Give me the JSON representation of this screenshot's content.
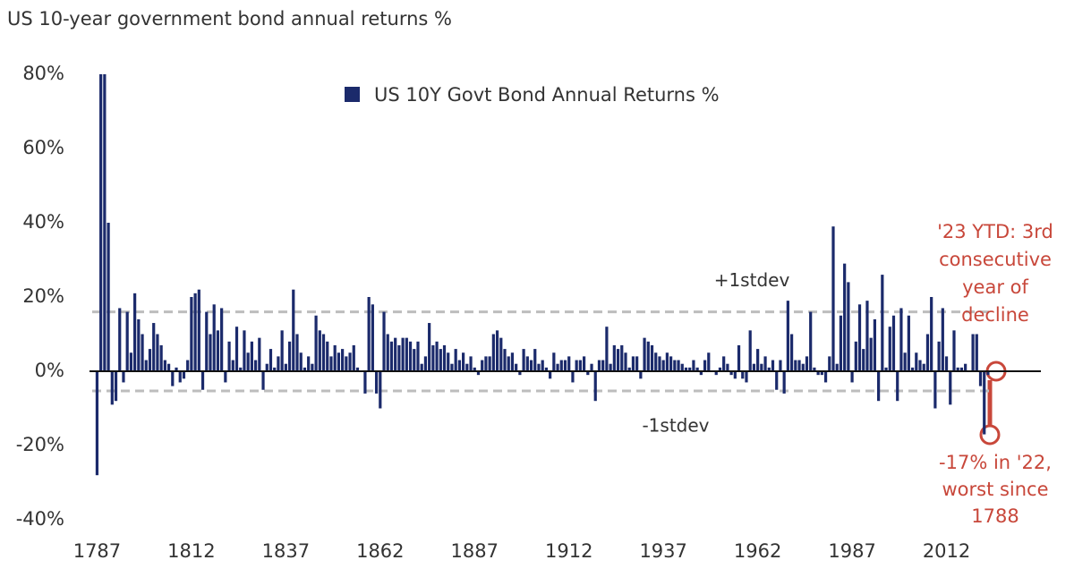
{
  "chart_data": {
    "type": "bar",
    "subtitle": "US 10-year government bond annual returns %",
    "series": [
      {
        "name": "US 10Y Govt Bond Annual Returns %",
        "color": "#1b2a6b",
        "values": [
          -28,
          80,
          80,
          40,
          -9,
          -8,
          17,
          -3,
          16,
          5,
          21,
          14,
          10,
          3,
          6,
          13,
          10,
          7,
          3,
          2,
          -4,
          1,
          -3,
          -2,
          3,
          20,
          21,
          22,
          -5,
          16,
          10,
          18,
          11,
          17,
          -3,
          8,
          3,
          12,
          1,
          11,
          5,
          8,
          3,
          9,
          -5,
          2,
          6,
          1,
          4,
          11,
          2,
          8,
          22,
          10,
          5,
          1,
          4,
          2,
          15,
          11,
          10,
          8,
          4,
          7,
          5,
          6,
          4,
          5,
          7,
          1,
          0,
          -6,
          20,
          18,
          -6,
          -10,
          16,
          10,
          8,
          9,
          7,
          9,
          9,
          8,
          6,
          8,
          2,
          4,
          13,
          7,
          8,
          6,
          7,
          5,
          2,
          6,
          3,
          5,
          2,
          4,
          1,
          -1,
          3,
          4,
          4,
          10,
          11,
          9,
          6,
          4,
          5,
          2,
          -1,
          6,
          4,
          3,
          6,
          2,
          3,
          1,
          -2,
          5,
          2,
          3,
          3,
          4,
          -3,
          3,
          3,
          4,
          -1,
          2,
          -8,
          3,
          3,
          12,
          2,
          7,
          6,
          7,
          5,
          1,
          4,
          4,
          -2,
          9,
          8,
          7,
          5,
          4,
          3,
          5,
          4,
          3,
          3,
          2,
          1,
          1,
          3,
          1,
          -1,
          3,
          5,
          0,
          -1,
          1,
          4,
          2,
          -1,
          -2,
          7,
          -2,
          -3,
          11,
          2,
          6,
          2,
          4,
          1,
          3,
          -5,
          3,
          -6,
          19,
          10,
          3,
          3,
          2,
          4,
          16,
          1,
          -1,
          -1,
          -3,
          4,
          39,
          2,
          15,
          29,
          24,
          -3,
          8,
          18,
          6,
          19,
          9,
          14,
          -8,
          26,
          1,
          12,
          15,
          -8,
          17,
          5,
          15,
          1,
          5,
          3,
          2,
          10,
          20,
          -10,
          8,
          17,
          4,
          -9,
          11,
          1,
          1,
          2,
          0,
          10,
          10,
          -4,
          -17,
          -1
        ]
      }
    ],
    "x": [
      1787,
      1788,
      1789,
      1790,
      1791,
      1792,
      1793,
      1794,
      1795,
      1796,
      1797,
      1798,
      1799,
      1800,
      1801,
      1802,
      1803,
      1804,
      1805,
      1806,
      1807,
      1808,
      1809,
      1810,
      1811,
      1812,
      1813,
      1814,
      1815,
      1816,
      1817,
      1818,
      1819,
      1820,
      1821,
      1822,
      1823,
      1824,
      1825,
      1826,
      1827,
      1828,
      1829,
      1830,
      1831,
      1832,
      1833,
      1834,
      1835,
      1836,
      1837,
      1838,
      1839,
      1840,
      1841,
      1842,
      1843,
      1844,
      1845,
      1846,
      1847,
      1848,
      1849,
      1850,
      1851,
      1852,
      1853,
      1854,
      1855,
      1856,
      1857,
      1858,
      1859,
      1860,
      1861,
      1862,
      1863,
      1864,
      1865,
      1866,
      1867,
      1868,
      1869,
      1870,
      1871,
      1872,
      1873,
      1874,
      1875,
      1876,
      1877,
      1878,
      1879,
      1880,
      1881,
      1882,
      1883,
      1884,
      1885,
      1886,
      1887,
      1888,
      1889,
      1890,
      1891,
      1892,
      1893,
      1894,
      1895,
      1896,
      1897,
      1898,
      1899,
      1900,
      1901,
      1902,
      1903,
      1904,
      1905,
      1906,
      1907,
      1908,
      1909,
      1910,
      1911,
      1912,
      1913,
      1914,
      1915,
      1916,
      1917,
      1918,
      1919,
      1920,
      1921,
      1922,
      1923,
      1924,
      1925,
      1926,
      1927,
      1928,
      1929,
      1930,
      1931,
      1932,
      1933,
      1934,
      1935,
      1936,
      1937,
      1938,
      1939,
      1940,
      1941,
      1942,
      1943,
      1944,
      1945,
      1946,
      1947,
      1948,
      1949,
      1950,
      1951,
      1952,
      1953,
      1954,
      1955,
      1956,
      1957,
      1958,
      1959,
      1960,
      1961,
      1962,
      1963,
      1964,
      1965,
      1966,
      1967,
      1968,
      1969,
      1970,
      1971,
      1972,
      1973,
      1974,
      1975,
      1976,
      1977,
      1978,
      1979,
      1980,
      1981,
      1982,
      1983,
      1984,
      1985,
      1986,
      1987,
      1988,
      1989,
      1990,
      1991,
      1992,
      1993,
      1994,
      1995,
      1996,
      1997,
      1998,
      1999,
      2000,
      2001,
      2002,
      2003,
      2004,
      2005,
      2006,
      2007,
      2008,
      2009,
      2010,
      2011,
      2012,
      2013,
      2014,
      2015,
      2016,
      2017,
      2018,
      2019,
      2020,
      2021,
      2022,
      2023
    ],
    "xlim": [
      1785,
      2037
    ],
    "xticks": [
      1787,
      1812,
      1837,
      1862,
      1887,
      1912,
      1937,
      1962,
      1987,
      2012
    ],
    "ylim": [
      -40,
      80
    ],
    "yticks": [
      {
        "value": -40,
        "label": "-40%"
      },
      {
        "value": -20,
        "label": "-20%"
      },
      {
        "value": 0,
        "label": "0%"
      },
      {
        "value": 20,
        "label": "20%"
      },
      {
        "value": 40,
        "label": "40%"
      },
      {
        "value": 60,
        "label": "60%"
      },
      {
        "value": 80,
        "label": "80%"
      }
    ],
    "stdev_lines": [
      {
        "label": "+1stdev",
        "value": 16
      },
      {
        "label": "-1stdev",
        "value": -5.3
      }
    ],
    "annotations": [
      {
        "lines": [
          "'23 YTD: 3rd",
          "consecutive",
          "year of",
          "decline"
        ]
      },
      {
        "lines": [
          "-17% in '22,",
          "worst since",
          "1788"
        ]
      }
    ]
  }
}
